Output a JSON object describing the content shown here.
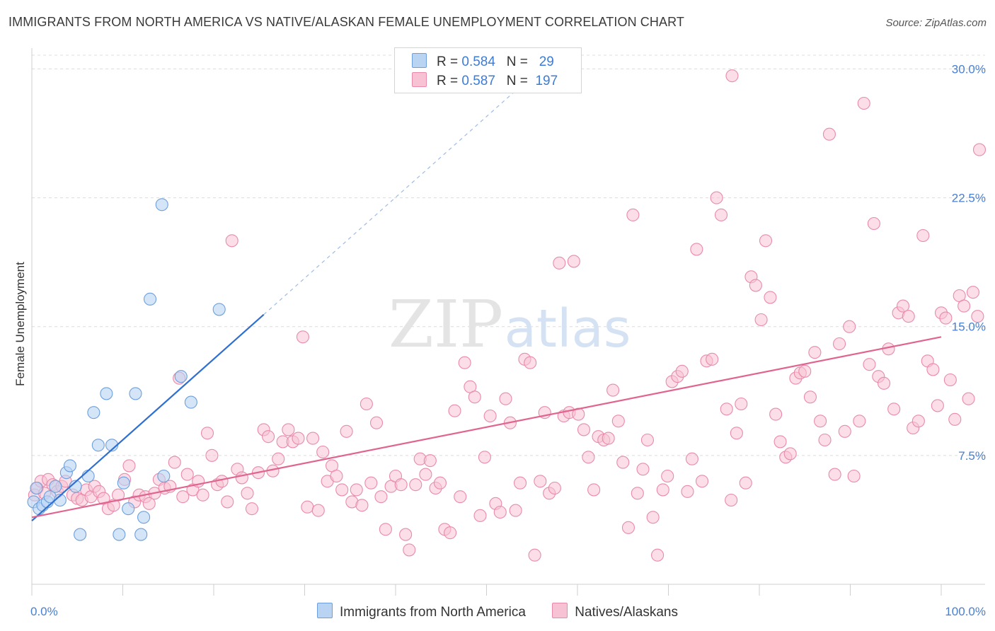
{
  "header": {
    "title": "IMMIGRANTS FROM NORTH AMERICA VS NATIVE/ALASKAN FEMALE UNEMPLOYMENT CORRELATION CHART",
    "source": "Source: ZipAtlas.com"
  },
  "watermark": {
    "zip": "ZIP",
    "atlas": "atlas"
  },
  "legend": {
    "rows": [
      {
        "r_label": "R =",
        "r_value": "0.584",
        "n_label": "N =",
        "n_value": "29"
      },
      {
        "r_label": "R =",
        "r_value": "0.587",
        "n_label": "N =",
        "n_value": "197"
      }
    ]
  },
  "colors": {
    "blue_fill": "#b9d3f3",
    "blue_stroke": "#6d9fdd",
    "blue_line": "#2f6fd0",
    "pink_fill": "#f7c3d4",
    "pink_stroke": "#e98aab",
    "pink_line": "#e0648f",
    "tick_label": "#4a7fcf",
    "grid": "#dcdcdc"
  },
  "chart_data": {
    "type": "scatter",
    "title": "IMMIGRANTS FROM NORTH AMERICA VS NATIVE/ALASKAN FEMALE UNEMPLOYMENT CORRELATION CHART",
    "xlabel": "",
    "ylabel": "Female Unemployment",
    "xlim": [
      0,
      100
    ],
    "ylim": [
      0,
      30.8
    ],
    "x_tick_labels": [
      "0.0%",
      "100.0%"
    ],
    "y_ticks": [
      7.5,
      15.0,
      22.5,
      30.0
    ],
    "y_tick_labels": [
      "7.5%",
      "15.0%",
      "22.5%",
      "30.0%"
    ],
    "grid": "horizontal dashed",
    "legend_position": "bottom",
    "series": [
      {
        "name": "Immigrants from North America",
        "color": "blue",
        "points": [
          [
            0.2,
            4.8
          ],
          [
            0.5,
            5.6
          ],
          [
            0.8,
            4.4
          ],
          [
            1.2,
            4.6
          ],
          [
            1.7,
            4.8
          ],
          [
            2.0,
            5.1
          ],
          [
            2.6,
            5.7
          ],
          [
            3.1,
            4.9
          ],
          [
            3.8,
            6.5
          ],
          [
            4.2,
            6.9
          ],
          [
            4.8,
            5.7
          ],
          [
            5.3,
            2.9
          ],
          [
            6.2,
            6.3
          ],
          [
            6.8,
            10.0
          ],
          [
            7.3,
            8.1
          ],
          [
            8.2,
            11.1
          ],
          [
            8.8,
            8.1
          ],
          [
            9.6,
            2.9
          ],
          [
            10.1,
            5.9
          ],
          [
            10.6,
            4.4
          ],
          [
            11.4,
            11.1
          ],
          [
            12.0,
            2.9
          ],
          [
            12.3,
            3.9
          ],
          [
            13.0,
            16.6
          ],
          [
            14.3,
            22.1
          ],
          [
            14.5,
            6.3
          ],
          [
            16.4,
            12.1
          ],
          [
            17.5,
            10.6
          ],
          [
            20.6,
            16.0
          ]
        ],
        "trend": {
          "x0": 0,
          "y0": 3.7,
          "x1": 25.5,
          "y1": 15.7,
          "dashed_to_y": 30.8
        }
      },
      {
        "name": "Natives/Alaskans",
        "color": "pink",
        "points": [
          [
            0.3,
            5.2
          ],
          [
            0.6,
            5.6
          ],
          [
            1.0,
            6.0
          ],
          [
            1.4,
            5.3
          ],
          [
            1.8,
            6.1
          ],
          [
            2.3,
            5.8
          ],
          [
            2.8,
            5.4
          ],
          [
            3.3,
            5.7
          ],
          [
            3.7,
            6.0
          ],
          [
            4.5,
            5.2
          ],
          [
            5.0,
            5.0
          ],
          [
            5.5,
            4.9
          ],
          [
            6.0,
            5.5
          ],
          [
            6.5,
            5.1
          ],
          [
            6.9,
            5.7
          ],
          [
            7.4,
            5.4
          ],
          [
            7.9,
            5.0
          ],
          [
            8.4,
            4.4
          ],
          [
            9.0,
            4.6
          ],
          [
            9.5,
            5.2
          ],
          [
            10.2,
            6.1
          ],
          [
            10.7,
            6.9
          ],
          [
            11.3,
            4.8
          ],
          [
            11.8,
            5.2
          ],
          [
            12.5,
            5.1
          ],
          [
            12.9,
            4.7
          ],
          [
            13.5,
            5.3
          ],
          [
            14.0,
            6.1
          ],
          [
            14.6,
            5.6
          ],
          [
            15.2,
            5.7
          ],
          [
            15.7,
            7.1
          ],
          [
            16.2,
            12.0
          ],
          [
            16.6,
            5.1
          ],
          [
            17.1,
            6.4
          ],
          [
            17.7,
            5.5
          ],
          [
            18.3,
            6.0
          ],
          [
            18.8,
            5.2
          ],
          [
            19.3,
            8.8
          ],
          [
            19.8,
            7.5
          ],
          [
            20.4,
            5.8
          ],
          [
            20.9,
            6.0
          ],
          [
            21.5,
            4.8
          ],
          [
            22.0,
            20.0
          ],
          [
            22.6,
            6.7
          ],
          [
            23.1,
            6.2
          ],
          [
            23.7,
            5.3
          ],
          [
            24.2,
            4.4
          ],
          [
            24.9,
            6.5
          ],
          [
            25.5,
            9.0
          ],
          [
            26.0,
            8.6
          ],
          [
            26.5,
            6.6
          ],
          [
            27.1,
            7.3
          ],
          [
            27.6,
            8.3
          ],
          [
            28.2,
            9.0
          ],
          [
            28.7,
            8.3
          ],
          [
            29.3,
            8.5
          ],
          [
            29.8,
            14.4
          ],
          [
            30.3,
            4.5
          ],
          [
            30.9,
            8.5
          ],
          [
            31.5,
            4.3
          ],
          [
            32.0,
            7.7
          ],
          [
            32.5,
            6.0
          ],
          [
            33.0,
            6.9
          ],
          [
            33.5,
            6.3
          ],
          [
            34.1,
            5.5
          ],
          [
            34.6,
            8.9
          ],
          [
            35.2,
            4.8
          ],
          [
            35.7,
            5.5
          ],
          [
            36.3,
            4.6
          ],
          [
            36.8,
            10.5
          ],
          [
            37.3,
            5.9
          ],
          [
            37.9,
            9.4
          ],
          [
            38.4,
            5.1
          ],
          [
            38.9,
            3.2
          ],
          [
            39.5,
            5.7
          ],
          [
            40.0,
            6.3
          ],
          [
            40.6,
            5.8
          ],
          [
            41.1,
            2.9
          ],
          [
            41.5,
            2.0
          ],
          [
            42.2,
            5.8
          ],
          [
            42.7,
            7.3
          ],
          [
            43.3,
            6.4
          ],
          [
            43.8,
            7.2
          ],
          [
            44.4,
            5.6
          ],
          [
            44.9,
            5.9
          ],
          [
            45.4,
            3.2
          ],
          [
            46.0,
            3.0
          ],
          [
            46.5,
            10.1
          ],
          [
            47.1,
            5.1
          ],
          [
            47.6,
            12.9
          ],
          [
            48.2,
            11.5
          ],
          [
            48.7,
            10.9
          ],
          [
            49.3,
            4.0
          ],
          [
            49.8,
            7.4
          ],
          [
            50.4,
            9.8
          ],
          [
            51.0,
            4.7
          ],
          [
            51.5,
            4.2
          ],
          [
            52.1,
            10.8
          ],
          [
            52.6,
            9.4
          ],
          [
            53.2,
            4.3
          ],
          [
            53.7,
            5.9
          ],
          [
            54.2,
            13.1
          ],
          [
            54.8,
            12.9
          ],
          [
            55.3,
            1.7
          ],
          [
            55.9,
            6.0
          ],
          [
            56.4,
            10.0
          ],
          [
            56.9,
            5.3
          ],
          [
            57.5,
            5.6
          ],
          [
            58.0,
            18.7
          ],
          [
            58.5,
            9.8
          ],
          [
            59.1,
            10.0
          ],
          [
            59.6,
            18.8
          ],
          [
            60.1,
            9.9
          ],
          [
            60.7,
            9.0
          ],
          [
            61.2,
            7.4
          ],
          [
            61.8,
            5.5
          ],
          [
            62.3,
            8.6
          ],
          [
            62.9,
            8.4
          ],
          [
            63.4,
            8.5
          ],
          [
            63.9,
            11.3
          ],
          [
            64.5,
            9.5
          ],
          [
            65.0,
            7.1
          ],
          [
            65.6,
            3.3
          ],
          [
            66.1,
            21.5
          ],
          [
            66.6,
            5.3
          ],
          [
            67.2,
            6.7
          ],
          [
            67.7,
            8.4
          ],
          [
            68.3,
            3.9
          ],
          [
            68.8,
            1.7
          ],
          [
            69.4,
            5.5
          ],
          [
            69.9,
            6.3
          ],
          [
            70.4,
            11.8
          ],
          [
            71.0,
            12.1
          ],
          [
            71.5,
            12.4
          ],
          [
            72.1,
            5.4
          ],
          [
            72.6,
            7.3
          ],
          [
            73.1,
            19.5
          ],
          [
            73.7,
            6.0
          ],
          [
            74.2,
            13.0
          ],
          [
            74.8,
            13.1
          ],
          [
            75.3,
            22.5
          ],
          [
            75.8,
            21.5
          ],
          [
            76.4,
            10.2
          ],
          [
            76.9,
            4.9
          ],
          [
            77.5,
            8.8
          ],
          [
            78.0,
            10.5
          ],
          [
            78.5,
            5.9
          ],
          [
            79.1,
            17.9
          ],
          [
            79.6,
            17.4
          ],
          [
            80.2,
            15.4
          ],
          [
            80.7,
            20.0
          ],
          [
            81.2,
            16.7
          ],
          [
            81.8,
            9.9
          ],
          [
            82.3,
            8.3
          ],
          [
            82.9,
            7.4
          ],
          [
            83.4,
            7.6
          ],
          [
            84.0,
            12.0
          ],
          [
            84.5,
            12.3
          ],
          [
            85.0,
            12.4
          ],
          [
            85.6,
            10.9
          ],
          [
            86.1,
            13.5
          ],
          [
            86.7,
            9.5
          ],
          [
            87.2,
            8.4
          ],
          [
            87.7,
            26.2
          ],
          [
            88.3,
            6.4
          ],
          [
            88.8,
            14.0
          ],
          [
            89.4,
            8.9
          ],
          [
            89.9,
            15.0
          ],
          [
            90.4,
            6.3
          ],
          [
            91.0,
            9.5
          ],
          [
            91.5,
            28.0
          ],
          [
            92.1,
            12.8
          ],
          [
            92.6,
            21.0
          ],
          [
            93.1,
            12.1
          ],
          [
            93.7,
            11.7
          ],
          [
            94.2,
            13.7
          ],
          [
            94.8,
            10.2
          ],
          [
            95.3,
            15.8
          ],
          [
            95.8,
            16.2
          ],
          [
            96.4,
            15.6
          ],
          [
            96.9,
            9.1
          ],
          [
            97.5,
            9.5
          ],
          [
            98.0,
            20.3
          ],
          [
            98.5,
            13.0
          ],
          [
            99.1,
            12.5
          ],
          [
            99.6,
            10.4
          ],
          [
            100.0,
            15.8
          ],
          [
            100.5,
            15.5
          ],
          [
            101.0,
            11.9
          ],
          [
            101.5,
            9.6
          ],
          [
            102.0,
            16.8
          ],
          [
            102.5,
            16.2
          ],
          [
            103.0,
            10.8
          ],
          [
            103.5,
            17.0
          ],
          [
            104.0,
            15.6
          ],
          [
            104.5,
            25.3
          ],
          [
            77.0,
            29.6
          ]
        ],
        "trend": {
          "x0": 0,
          "y0": 3.9,
          "x1": 100,
          "y1": 14.4
        }
      }
    ]
  },
  "bottom_legend": {
    "items": [
      {
        "label": "Immigrants from North America"
      },
      {
        "label": "Natives/Alaskans"
      }
    ]
  }
}
